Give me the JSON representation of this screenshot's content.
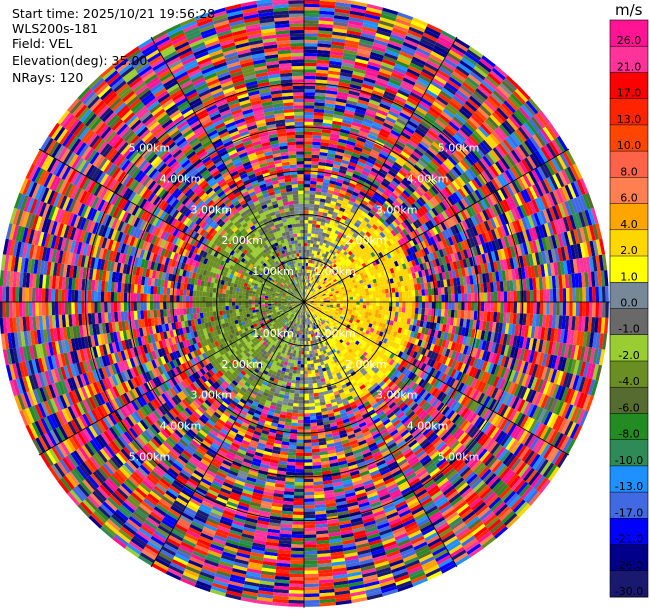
{
  "header": {
    "start_time": "Start time: 2025/10/21 19:56:28",
    "site": "WLS200s-181",
    "field": "Field: VEL",
    "elevation": "Elevation(deg): 35.00",
    "nrays": "NRays: 120"
  },
  "chart_data": {
    "type": "heatmap",
    "projection": "polar-ppi",
    "title": "",
    "xlabel": "",
    "ylabel": "",
    "nrays": 120,
    "elevation_deg": 35.0,
    "field": "VEL",
    "range_rings_km": [
      1.0,
      2.0,
      3.0,
      4.0,
      5.0
    ],
    "ring_labels": [
      "1.00km",
      "2.00km",
      "3.00km",
      "4.00km",
      "5.00km"
    ],
    "max_range_km": 7.0,
    "grid": true,
    "colorbar": {
      "unit": "m/s",
      "placement": "right",
      "ticks": [
        "26.0",
        "21.0",
        "17.0",
        "13.0",
        "10.0",
        "8.0",
        "6.0",
        "4.0",
        "2.0",
        "1.0",
        "0.0",
        "-1.0",
        "-2.0",
        "-4.0",
        "-6.0",
        "-8.0",
        "-10.0",
        "-13.0",
        "-17.0",
        "-21.0",
        "-26.0",
        "-30.0"
      ],
      "bins": [
        {
          "lo": 26,
          "hi": 30,
          "color": "#ff1493"
        },
        {
          "lo": 21,
          "hi": 26,
          "color": "#ff3399"
        },
        {
          "lo": 17,
          "hi": 21,
          "color": "#ff0000"
        },
        {
          "lo": 13,
          "hi": 17,
          "color": "#ff2400"
        },
        {
          "lo": 10,
          "hi": 13,
          "color": "#ff4500"
        },
        {
          "lo": 8,
          "hi": 10,
          "color": "#ff6347"
        },
        {
          "lo": 6,
          "hi": 8,
          "color": "#ff7f50"
        },
        {
          "lo": 4,
          "hi": 6,
          "color": "#ffa500"
        },
        {
          "lo": 2,
          "hi": 4,
          "color": "#ffd700"
        },
        {
          "lo": 1,
          "hi": 2,
          "color": "#ffff00"
        },
        {
          "lo": 0,
          "hi": 1,
          "color": "#778899"
        },
        {
          "lo": -1,
          "hi": 0,
          "color": "#696969"
        },
        {
          "lo": -2,
          "hi": -1,
          "color": "#9acd32"
        },
        {
          "lo": -4,
          "hi": -2,
          "color": "#6b8e23"
        },
        {
          "lo": -6,
          "hi": -4,
          "color": "#556b2f"
        },
        {
          "lo": -8,
          "hi": -6,
          "color": "#228b22"
        },
        {
          "lo": -10,
          "hi": -8,
          "color": "#2e8b57"
        },
        {
          "lo": -13,
          "hi": -10,
          "color": "#1e90ff"
        },
        {
          "lo": -17,
          "hi": -13,
          "color": "#4169e1"
        },
        {
          "lo": -21,
          "hi": -17,
          "color": "#0000ff"
        },
        {
          "lo": -26,
          "hi": -21,
          "color": "#00008b"
        },
        {
          "lo": -30,
          "hi": -26,
          "color": "#191970"
        }
      ]
    }
  }
}
